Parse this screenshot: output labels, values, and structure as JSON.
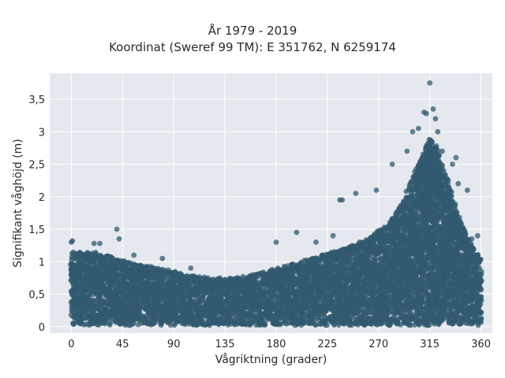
{
  "chart_data": {
    "type": "scatter",
    "title": "År 1979 - 2019",
    "subtitle": "Koordinat (Sweref 99 TM): E 351762, N 6259174",
    "xlabel": "Vågriktning (grader)",
    "ylabel": "Signifikant våghöjd (m)",
    "xlim": [
      -19,
      370
    ],
    "ylim": [
      -0.1,
      3.9
    ],
    "x_ticks": [
      0,
      45,
      90,
      135,
      180,
      225,
      270,
      315,
      360
    ],
    "x_tick_labels": [
      "0",
      "45",
      "90",
      "135",
      "180",
      "225",
      "270",
      "315",
      "360"
    ],
    "y_ticks": [
      0,
      0.5,
      1,
      1.5,
      2,
      2.5,
      3,
      3.5
    ],
    "y_tick_labels": [
      "0",
      "0,5",
      "1",
      "1,5",
      "2",
      "2,5",
      "3",
      "3,5"
    ],
    "grid": true,
    "marker_color": "#325a70",
    "background_color": "#e5e8ee",
    "envelope": {
      "direction": [
        0,
        20,
        40,
        60,
        80,
        100,
        120,
        140,
        160,
        180,
        200,
        220,
        240,
        260,
        280,
        290,
        300,
        310,
        315,
        320,
        330,
        340,
        350,
        360
      ],
      "upper_height": [
        1.15,
        1.15,
        1.05,
        0.95,
        0.9,
        0.8,
        0.75,
        0.75,
        0.8,
        0.9,
        1.0,
        1.1,
        1.2,
        1.35,
        1.6,
        1.9,
        2.3,
        2.7,
        2.9,
        2.8,
        2.3,
        1.7,
        1.3,
        1.05
      ],
      "lower_height": [
        0.02,
        0.02,
        0.02,
        0.02,
        0.02,
        0.02,
        0.02,
        0.02,
        0.02,
        0.02,
        0.02,
        0.02,
        0.02,
        0.02,
        0.02,
        0.02,
        0.02,
        0.02,
        0.02,
        0.02,
        0.02,
        0.02,
        0.02,
        0.02
      ]
    },
    "outlier_points": [
      {
        "x": 0,
        "y": 1.3
      },
      {
        "x": 1,
        "y": 1.32
      },
      {
        "x": 20,
        "y": 1.28
      },
      {
        "x": 25,
        "y": 1.28
      },
      {
        "x": 40,
        "y": 1.5
      },
      {
        "x": 42,
        "y": 1.35
      },
      {
        "x": 55,
        "y": 1.1
      },
      {
        "x": 80,
        "y": 1.05
      },
      {
        "x": 105,
        "y": 0.9
      },
      {
        "x": 180,
        "y": 1.3
      },
      {
        "x": 198,
        "y": 1.45
      },
      {
        "x": 215,
        "y": 1.3
      },
      {
        "x": 230,
        "y": 1.4
      },
      {
        "x": 236,
        "y": 1.95
      },
      {
        "x": 238,
        "y": 1.95
      },
      {
        "x": 250,
        "y": 2.05
      },
      {
        "x": 268,
        "y": 2.1
      },
      {
        "x": 282,
        "y": 2.5
      },
      {
        "x": 295,
        "y": 2.7
      },
      {
        "x": 300,
        "y": 3.0
      },
      {
        "x": 305,
        "y": 3.05
      },
      {
        "x": 310,
        "y": 3.3
      },
      {
        "x": 312,
        "y": 3.28
      },
      {
        "x": 315,
        "y": 3.75
      },
      {
        "x": 318,
        "y": 3.35
      },
      {
        "x": 320,
        "y": 3.2
      },
      {
        "x": 322,
        "y": 3.0
      },
      {
        "x": 326,
        "y": 2.7
      },
      {
        "x": 335,
        "y": 2.5
      },
      {
        "x": 338,
        "y": 2.6
      },
      {
        "x": 340,
        "y": 2.2
      },
      {
        "x": 348,
        "y": 2.1
      },
      {
        "x": 352,
        "y": 1.35
      },
      {
        "x": 357,
        "y": 1.4
      }
    ]
  }
}
